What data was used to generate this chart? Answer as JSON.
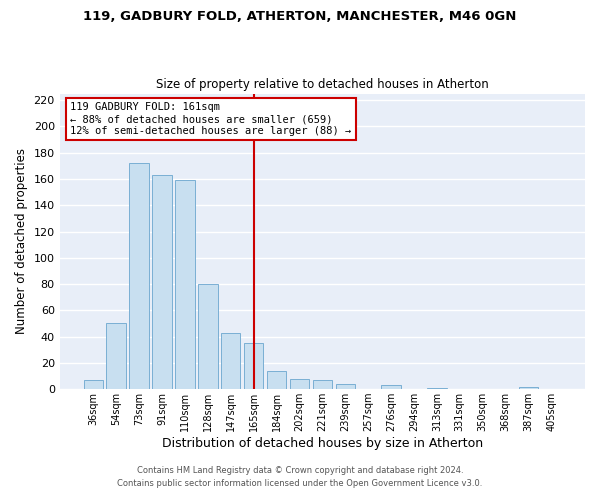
{
  "title": "119, GADBURY FOLD, ATHERTON, MANCHESTER, M46 0GN",
  "subtitle": "Size of property relative to detached houses in Atherton",
  "xlabel": "Distribution of detached houses by size in Atherton",
  "ylabel": "Number of detached properties",
  "bar_labels": [
    "36sqm",
    "54sqm",
    "73sqm",
    "91sqm",
    "110sqm",
    "128sqm",
    "147sqm",
    "165sqm",
    "184sqm",
    "202sqm",
    "221sqm",
    "239sqm",
    "257sqm",
    "276sqm",
    "294sqm",
    "313sqm",
    "331sqm",
    "350sqm",
    "368sqm",
    "387sqm",
    "405sqm"
  ],
  "bar_values": [
    7,
    50,
    172,
    163,
    159,
    80,
    43,
    35,
    14,
    8,
    7,
    4,
    0,
    3,
    0,
    1,
    0,
    0,
    0,
    2,
    0
  ],
  "bar_color": "#c8dff0",
  "bar_edge_color": "#7aafd4",
  "vline_color": "#cc0000",
  "annotation_title": "119 GADBURY FOLD: 161sqm",
  "annotation_line1": "← 88% of detached houses are smaller (659)",
  "annotation_line2": "12% of semi-detached houses are larger (88) →",
  "ylim": [
    0,
    225
  ],
  "yticks": [
    0,
    20,
    40,
    60,
    80,
    100,
    120,
    140,
    160,
    180,
    200,
    220
  ],
  "footnote1": "Contains HM Land Registry data © Crown copyright and database right 2024.",
  "footnote2": "Contains public sector information licensed under the Open Government Licence v3.0.",
  "bg_color": "#ffffff",
  "plot_bg_color": "#e8eef8",
  "grid_color": "#ffffff"
}
